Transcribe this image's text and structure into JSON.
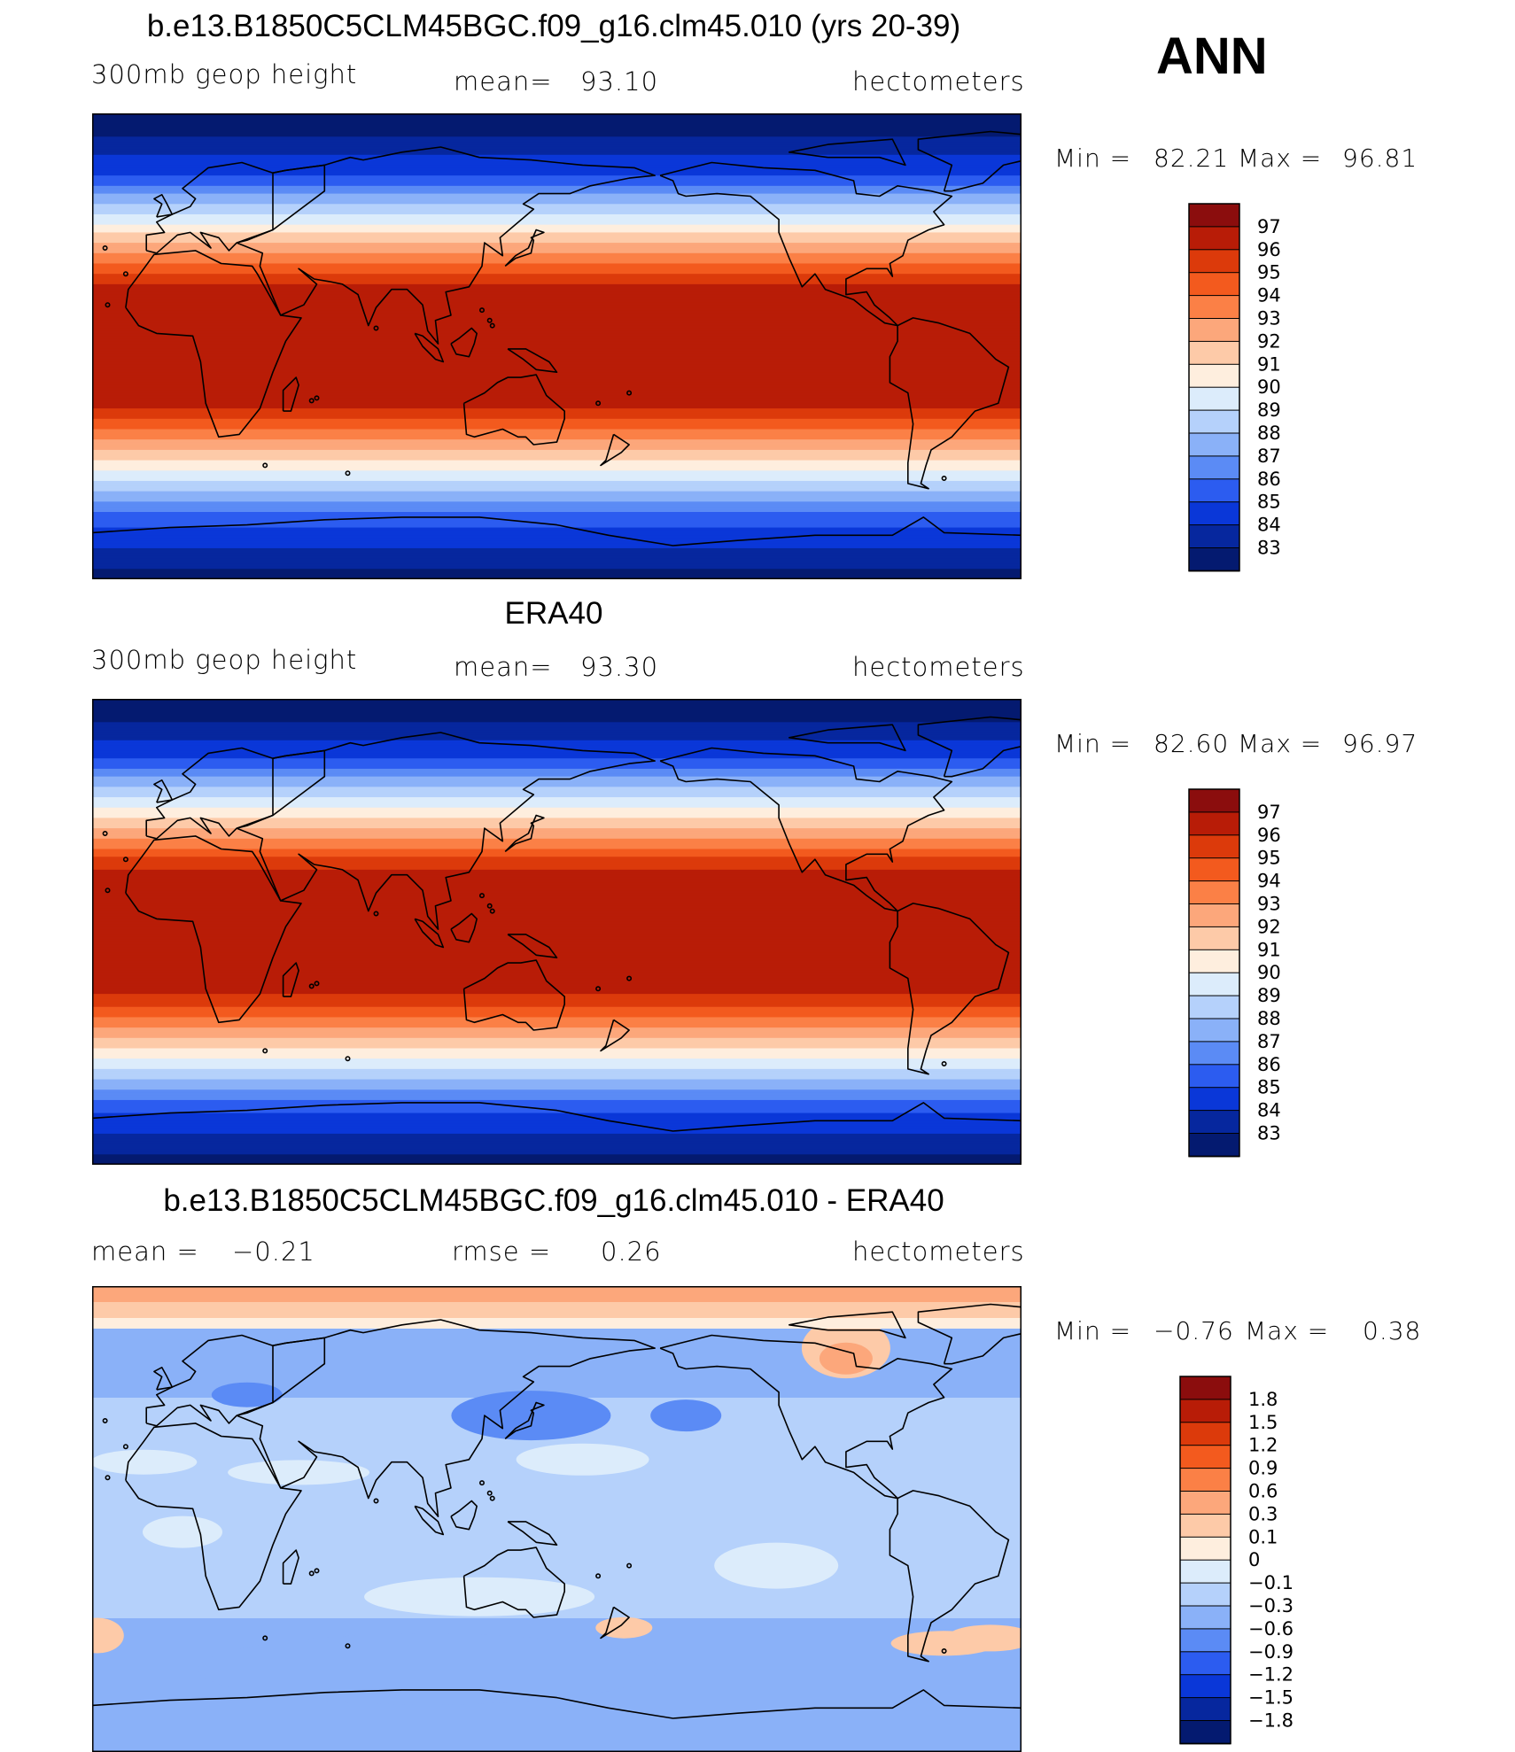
{
  "header": {
    "model_title": "b.e13.B1850C5CLM45BGC.f09_g16.clm45.010 (yrs 20-39)",
    "season": "ANN"
  },
  "chart_data": [
    {
      "type": "heatmap",
      "title": "b.e13.B1850C5CLM45BGC.f09_g16.clm45.010 (yrs 20-39)",
      "variable": "300mb geop height",
      "mean_label": "mean=",
      "mean": "93.10",
      "units": "hectometers",
      "min_label": "Min =",
      "min": "82.21",
      "max_label": "Max =",
      "max": "96.81",
      "levels": [
        "97",
        "96",
        "95",
        "94",
        "93",
        "92",
        "91",
        "90",
        "89",
        "88",
        "87",
        "86",
        "85",
        "84",
        "83"
      ],
      "colors": [
        "#8b0d0d",
        "#b81c07",
        "#dc3a0b",
        "#f35a1e",
        "#fb8046",
        "#fca77b",
        "#fdcaa8",
        "#feeede",
        "#dcecfb",
        "#b5d1fb",
        "#8ab1f8",
        "#5b8bf5",
        "#2c5cf0",
        "#0a37d8",
        "#06279e",
        "#041a70"
      ]
    },
    {
      "type": "heatmap",
      "title": "ERA40",
      "variable": "300mb geop height",
      "mean_label": "mean=",
      "mean": "93.30",
      "units": "hectometers",
      "min_label": "Min =",
      "min": "82.60",
      "max_label": "Max =",
      "max": "96.97",
      "levels": [
        "97",
        "96",
        "95",
        "94",
        "93",
        "92",
        "91",
        "90",
        "89",
        "88",
        "87",
        "86",
        "85",
        "84",
        "83"
      ],
      "colors": [
        "#8b0d0d",
        "#b81c07",
        "#dc3a0b",
        "#f35a1e",
        "#fb8046",
        "#fca77b",
        "#fdcaa8",
        "#feeede",
        "#dcecfb",
        "#b5d1fb",
        "#8ab1f8",
        "#5b8bf5",
        "#2c5cf0",
        "#0a37d8",
        "#06279e",
        "#041a70"
      ]
    },
    {
      "type": "heatmap",
      "title": "b.e13.B1850C5CLM45BGC.f09_g16.clm45.010 - ERA40",
      "mean_label": "mean =",
      "mean": "−0.21",
      "rmse_label": "rmse =",
      "rmse": "0.26",
      "units": "hectometers",
      "min_label": "Min =",
      "min": "−0.76",
      "max_label": "Max =",
      "max": "0.38",
      "levels": [
        "1.8",
        "1.5",
        "1.2",
        "0.9",
        "0.6",
        "0.3",
        "0.1",
        "0",
        "−0.1",
        "−0.3",
        "−0.6",
        "−0.9",
        "−1.2",
        "−1.5",
        "−1.8"
      ],
      "colors": [
        "#8b0d0d",
        "#b81c07",
        "#dc3a0b",
        "#f35a1e",
        "#fb8046",
        "#fca77b",
        "#fdcaa8",
        "#feeede",
        "#dcecfb",
        "#b5d1fb",
        "#8ab1f8",
        "#5b8bf5",
        "#2c5cf0",
        "#0a37d8",
        "#06279e",
        "#041a70"
      ]
    }
  ]
}
